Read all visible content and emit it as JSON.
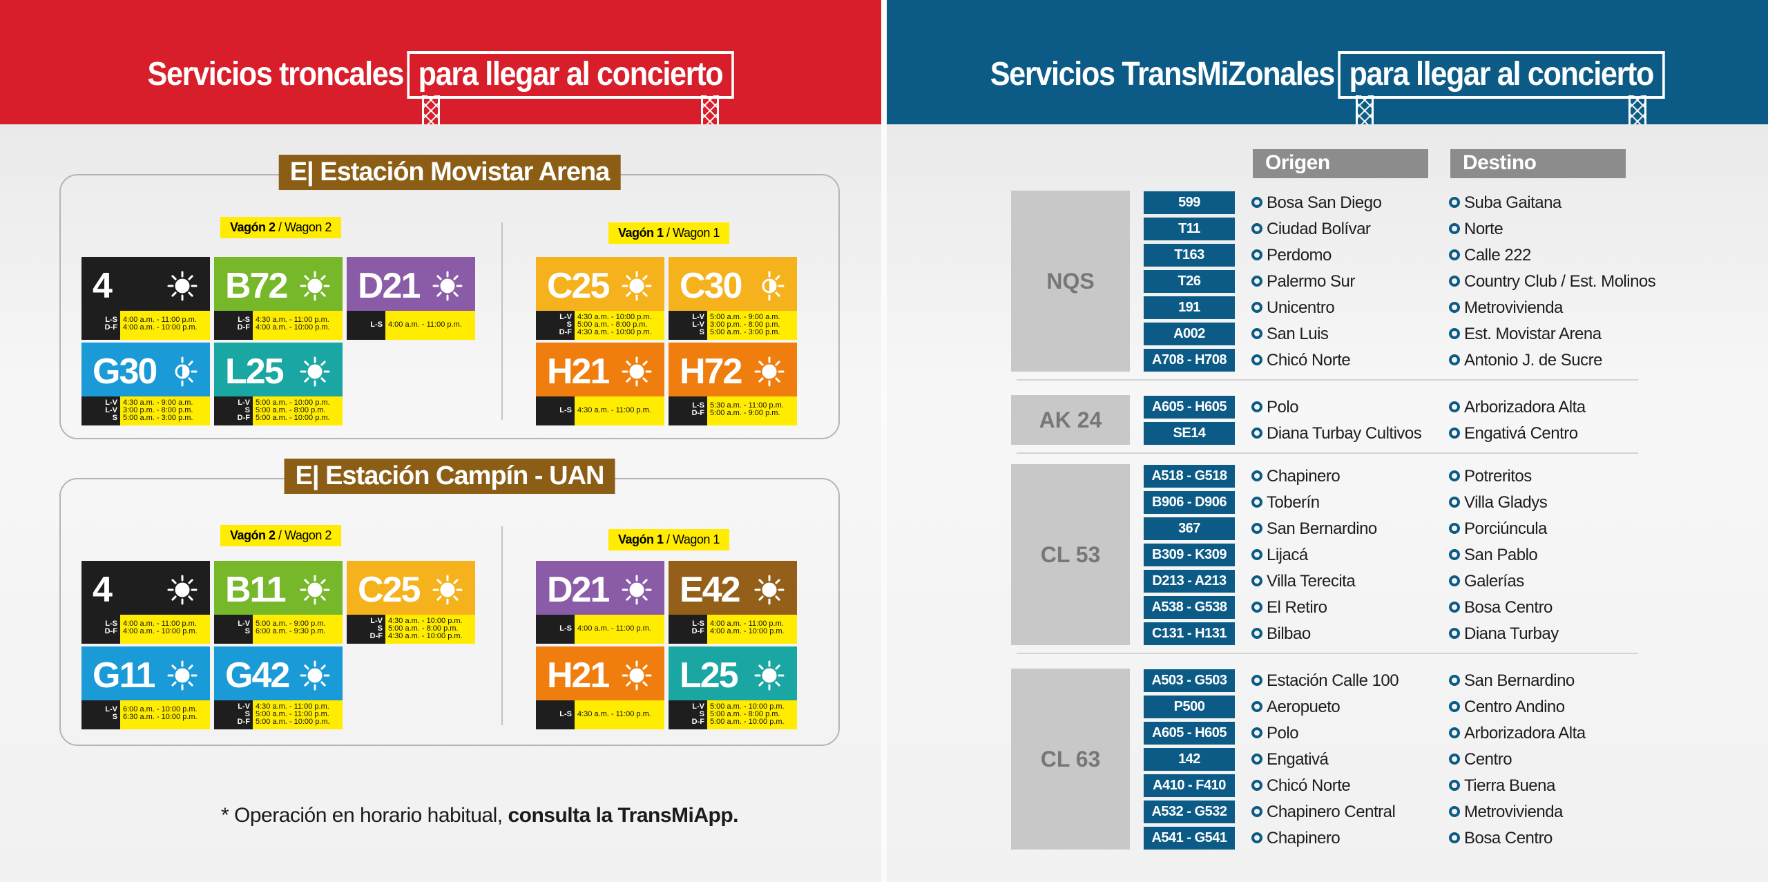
{
  "left_panel": {
    "title": "Servicios troncales",
    "title_box": "para llegar al concierto",
    "stations": [
      {
        "title": "E| Estación Movistar Arena",
        "wagons": [
          {
            "label": "Vagón 2",
            "sub": "/ Wagon 2"
          },
          {
            "label": "Vagón 1",
            "sub": "/ Wagon 1"
          }
        ],
        "cards": [
          {
            "route": "4",
            "color": "#1e1e1e",
            "icon": "sun-icon",
            "days": [
              "L-S",
              "D-F"
            ],
            "times": [
              "4:00 a.m. - 11:00 p.m.",
              "4:00 a.m. - 10:00 p.m."
            ]
          },
          {
            "route": "B72",
            "color": "#76b82a",
            "icon": "sun-icon",
            "days": [
              "L-S",
              "D-F"
            ],
            "times": [
              "4:30 a.m. - 11:00 p.m.",
              "4:00 a.m. - 10:00 p.m."
            ]
          },
          {
            "route": "D21",
            "color": "#8a5ba6",
            "icon": "sun-icon",
            "days": [
              "L-S"
            ],
            "times": [
              "4:00 a.m. - 11:00 p.m."
            ]
          },
          {
            "route": "G30",
            "color": "#1a9ad6",
            "icon": "half-sun-icon",
            "days": [
              "L-V",
              "L-V",
              "S"
            ],
            "times": [
              "4:30 a.m. - 9:00 a.m.",
              "3:00 p.m. - 8:00 p.m.",
              "5:00 a.m. - 3:00 p.m."
            ]
          },
          {
            "route": "L25",
            "color": "#1aa6a2",
            "icon": "sun-icon",
            "days": [
              "L-V",
              "S",
              "D-F"
            ],
            "times": [
              "5:00 a.m. - 10:00 p.m.",
              "5:00 a.m. - 8:00 p.m.",
              "5:00 a.m. - 10:00 p.m."
            ]
          },
          {
            "route": "C25",
            "color": "#f5b21d",
            "icon": "sun-icon",
            "days": [
              "L-V",
              "S",
              "D-F"
            ],
            "times": [
              "4:30 a.m. - 10:00 p.m.",
              "5:00 a.m. - 8:00 p.m.",
              "4:30 a.m. - 10:00 p.m."
            ]
          },
          {
            "route": "C30",
            "color": "#f5b21d",
            "icon": "half-sun-icon",
            "days": [
              "L-V",
              "L-V",
              "S"
            ],
            "times": [
              "5:00 a.m. - 9:00 a.m.",
              "3:00 p.m. - 8:00 p.m.",
              "5:00 a.m. - 3:00 p.m."
            ]
          },
          {
            "route": "H21",
            "color": "#ef7e0f",
            "icon": "sun-icon",
            "days": [
              "L-S"
            ],
            "times": [
              "4:30 a.m. - 11:00 p.m."
            ]
          },
          {
            "route": "H72",
            "color": "#ef7e0f",
            "icon": "sun-icon",
            "days": [
              "L-S",
              "D-F"
            ],
            "times": [
              "5:30 a.m. - 11:00 p.m.",
              "5:00 a.m. - 9:00 p.m."
            ]
          }
        ]
      },
      {
        "title": "E| Estación Campín - UAN",
        "wagons": [
          {
            "label": "Vagón 2",
            "sub": "/ Wagon 2"
          },
          {
            "label": "Vagón 1",
            "sub": "/ Wagon 1"
          }
        ],
        "cards": [
          {
            "route": "4",
            "color": "#1e1e1e",
            "icon": "sun-icon",
            "days": [
              "L-S",
              "D-F"
            ],
            "times": [
              "4:00 a.m. - 11:00 p.m.",
              "4:00 a.m. - 10:00 p.m."
            ]
          },
          {
            "route": "B11",
            "color": "#76b82a",
            "icon": "sun-icon",
            "days": [
              "L-V",
              "S"
            ],
            "times": [
              "5:00 a.m. - 9:00 p.m.",
              "6:00 a.m. - 9:30 p.m."
            ]
          },
          {
            "route": "C25",
            "color": "#f5b21d",
            "icon": "sun-icon",
            "days": [
              "L-V",
              "S",
              "D-F"
            ],
            "times": [
              "4:30 a.m. - 10:00 p.m.",
              "5:00 a.m. - 8:00 p.m.",
              "4:30 a.m. - 10:00 p.m."
            ]
          },
          {
            "route": "G11",
            "color": "#1a9ad6",
            "icon": "sun-icon",
            "days": [
              "L-V",
              "S"
            ],
            "times": [
              "6:00 a.m. - 10:00 p.m.",
              "6:30 a.m. - 10:00 p.m."
            ]
          },
          {
            "route": "G42",
            "color": "#1a9ad6",
            "icon": "sun-icon",
            "days": [
              "L-V",
              "S",
              "D-F"
            ],
            "times": [
              "4:30 a.m. - 11:00 p.m.",
              "5:00 a.m. - 11:00 p.m.",
              "5:00 a.m. - 10:00 p.m."
            ]
          },
          {
            "route": "D21",
            "color": "#8a5ba6",
            "icon": "sun-icon",
            "days": [
              "L-S"
            ],
            "times": [
              "4:00 a.m. - 11:00 p.m."
            ]
          },
          {
            "route": "E42",
            "color": "#946019",
            "icon": "sun-icon",
            "days": [
              "L-S",
              "D-F"
            ],
            "times": [
              "4:00 a.m. - 11:00 p.m.",
              "4:00 a.m. - 10:00 p.m."
            ]
          },
          {
            "route": "H21",
            "color": "#ef7e0f",
            "icon": "sun-icon",
            "days": [
              "L-S"
            ],
            "times": [
              "4:30 a.m. - 11:00 p.m."
            ]
          },
          {
            "route": "L25",
            "color": "#1aa6a2",
            "icon": "sun-icon",
            "days": [
              "L-V",
              "S",
              "D-F"
            ],
            "times": [
              "5:00 a.m. - 10:00 p.m.",
              "5:00 a.m. - 8:00 p.m.",
              "5:00 a.m. - 10:00 p.m."
            ]
          }
        ]
      }
    ],
    "note_prefix": "* Operación en horario habitual,",
    "note_bold": "consulta la TransMiApp."
  },
  "right_panel": {
    "title": "Servicios TransMiZonales",
    "title_box": "para llegar al concierto",
    "header_origin": "Origen",
    "header_destination": "Destino",
    "groups": [
      {
        "zone": "NQS",
        "rows": [
          {
            "code": "599",
            "origin": "Bosa San Diego",
            "destination": "Suba Gaitana"
          },
          {
            "code": "T11",
            "origin": "Ciudad Bolívar",
            "destination": "Norte"
          },
          {
            "code": "T163",
            "origin": "Perdomo",
            "destination": "Calle 222"
          },
          {
            "code": "T26",
            "origin": "Palermo Sur",
            "destination": "Country Club / Est. Molinos"
          },
          {
            "code": "191",
            "origin": "Unicentro",
            "destination": "Metrovivienda"
          },
          {
            "code": "A002",
            "origin": "San Luis",
            "destination": "Est. Movistar Arena"
          },
          {
            "code": "A708 - H708",
            "origin": "Chicó Norte",
            "destination": "Antonio J. de Sucre"
          }
        ]
      },
      {
        "zone": "AK 24",
        "rows": [
          {
            "code": "A605 - H605",
            "origin": "Polo",
            "destination": "Arborizadora Alta"
          },
          {
            "code": "SE14",
            "origin": "Diana Turbay Cultivos",
            "destination": "Engativá Centro"
          }
        ]
      },
      {
        "zone": "CL 53",
        "rows": [
          {
            "code": "A518 - G518",
            "origin": "Chapinero",
            "destination": "Potreritos"
          },
          {
            "code": "B906 - D906",
            "origin": "Toberín",
            "destination": "Villa Gladys"
          },
          {
            "code": "367",
            "origin": "San Bernardino",
            "destination": "Porciúncula"
          },
          {
            "code": "B309 - K309",
            "origin": "Lijacá",
            "destination": "San Pablo"
          },
          {
            "code": "D213 - A213",
            "origin": "Villa Terecita",
            "destination": "Galerías"
          },
          {
            "code": "A538 - G538",
            "origin": "El Retiro",
            "destination": "Bosa Centro"
          },
          {
            "code": "C131 - H131",
            "origin": "Bilbao",
            "destination": "Diana Turbay"
          }
        ]
      },
      {
        "zone": "CL 63",
        "rows": [
          {
            "code": "A503 - G503",
            "origin": "Estación Calle 100",
            "destination": "San Bernardino"
          },
          {
            "code": "P500",
            "origin": "Aeropueto",
            "destination": "Centro Andino"
          },
          {
            "code": "A605 - H605",
            "origin": "Polo",
            "destination": "Arborizadora Alta"
          },
          {
            "code": "142",
            "origin": "Engativá",
            "destination": "Centro"
          },
          {
            "code": "A410 - F410",
            "origin": "Chicó Norte",
            "destination": "Tierra Buena"
          },
          {
            "code": "A532 - G532",
            "origin": "Chapinero Central",
            "destination": "Metrovivienda"
          },
          {
            "code": "A541 - G541",
            "origin": "Chapinero",
            "destination": "Bosa Centro"
          }
        ]
      }
    ]
  }
}
